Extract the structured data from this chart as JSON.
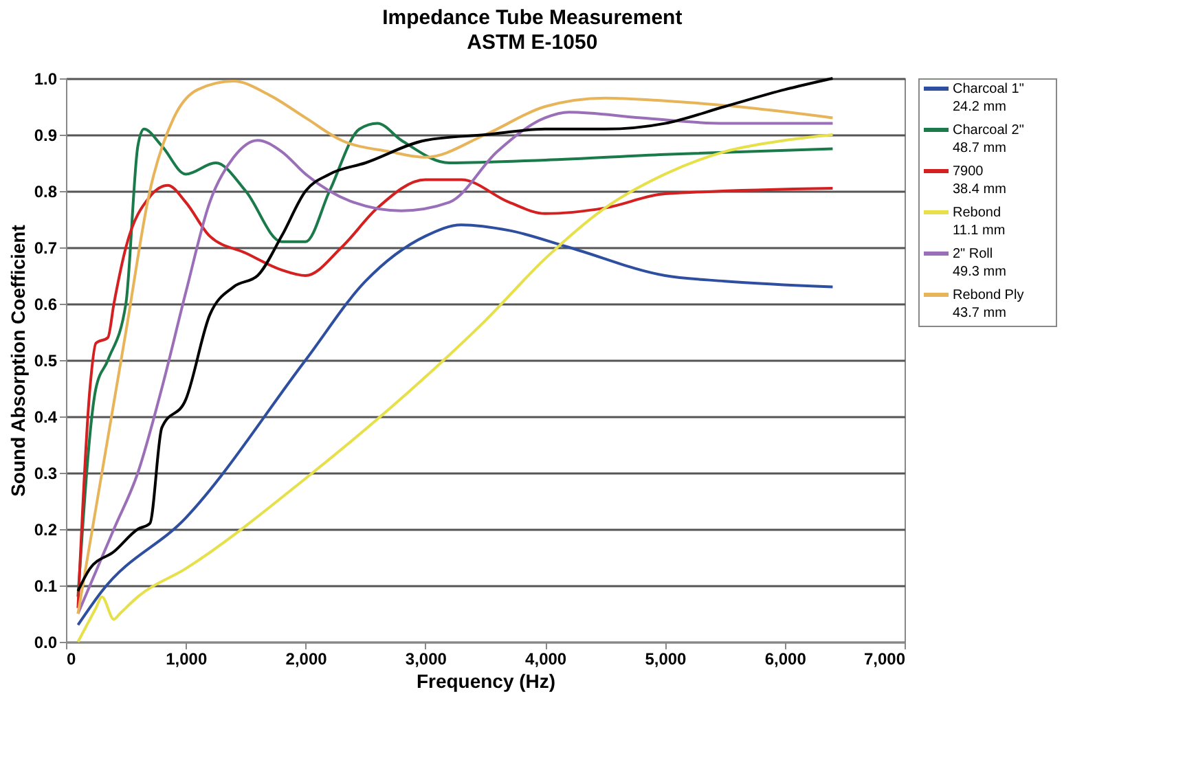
{
  "chart_data": {
    "type": "line",
    "title": "Impedance Tube Measurement",
    "subtitle": "ASTM E-1050",
    "xlabel": "Frequency (Hz)",
    "ylabel": "Sound Absorption Coefficient",
    "xlim": [
      0,
      7000
    ],
    "xticks": [
      {
        "value": 0,
        "label": "0"
      },
      {
        "value": 1000,
        "label": "1,000"
      },
      {
        "value": 2000,
        "label": "2,000"
      },
      {
        "value": 3000,
        "label": "3,000"
      },
      {
        "value": 4000,
        "label": "4,000"
      },
      {
        "value": 5000,
        "label": "5,000"
      },
      {
        "value": 6000,
        "label": "6,000"
      },
      {
        "value": 7000,
        "label": "7,000"
      }
    ],
    "ylim": [
      0,
      1
    ],
    "yticks": [
      {
        "value": 0,
        "label": "0.0"
      },
      {
        "value": 0.1,
        "label": "0.1"
      },
      {
        "value": 0.2,
        "label": "0.2"
      },
      {
        "value": 0.3,
        "label": "0.3"
      },
      {
        "value": 0.4,
        "label": "0.4"
      },
      {
        "value": 0.5,
        "label": "0.5"
      },
      {
        "value": 0.6,
        "label": "0.6"
      },
      {
        "value": 0.7,
        "label": "0.7"
      },
      {
        "value": 0.8,
        "label": "0.8"
      },
      {
        "value": 0.9,
        "label": "0.9"
      },
      {
        "value": 1,
        "label": "1.0"
      }
    ],
    "grid": "y",
    "legend": "right",
    "marker": "none",
    "line_style": "solid",
    "series": [
      {
        "name": "Charcoal 1\"\n24.2 mm",
        "color": "#2e4fa0",
        "x": [
          100,
          300,
          1000,
          2000,
          2500,
          3000,
          3300,
          3700,
          4200,
          5000,
          5500,
          6400
        ],
        "values": [
          0.03,
          0.09,
          0.22,
          0.5,
          0.64,
          0.72,
          0.74,
          0.73,
          0.7,
          0.65,
          0.64,
          0.63
        ]
      },
      {
        "name": "Charcoal 2\"\n48.7 mm",
        "color": "#1a7a4a",
        "x": [
          100,
          250,
          350,
          500,
          600,
          650,
          800,
          1000,
          1250,
          1500,
          1800,
          2000,
          2200,
          2450,
          2600,
          2800,
          3200,
          4000,
          5000,
          6400
        ],
        "values": [
          0.08,
          0.45,
          0.5,
          0.6,
          0.88,
          0.91,
          0.88,
          0.83,
          0.85,
          0.8,
          0.71,
          0.71,
          0.8,
          0.91,
          0.92,
          0.89,
          0.85,
          0.855,
          0.865,
          0.875
        ]
      },
      {
        "name": "7900\n38.4 mm",
        "color": "#d42020",
        "x": [
          100,
          200,
          250,
          350,
          400,
          500,
          700,
          850,
          1000,
          1200,
          1500,
          1800,
          2000,
          2300,
          2600,
          3000,
          3300,
          3700,
          4000,
          4500,
          5000,
          6400
        ],
        "values": [
          0.06,
          0.45,
          0.53,
          0.54,
          0.6,
          0.7,
          0.79,
          0.81,
          0.78,
          0.72,
          0.69,
          0.66,
          0.65,
          0.7,
          0.77,
          0.82,
          0.82,
          0.78,
          0.76,
          0.77,
          0.795,
          0.805
        ]
      },
      {
        "name": "Rebond\n11.1 mm",
        "color": "#e6e04a",
        "x": [
          100,
          250,
          300,
          400,
          450,
          600,
          1000,
          2000,
          3000,
          3500,
          4000,
          4500,
          5000,
          5500,
          6000,
          6400
        ],
        "values": [
          0.0,
          0.06,
          0.08,
          0.04,
          0.05,
          0.08,
          0.13,
          0.29,
          0.47,
          0.57,
          0.68,
          0.77,
          0.83,
          0.87,
          0.89,
          0.9
        ]
      },
      {
        "name": "2\" Roll\n49.3 mm",
        "color": "#9a6fb8",
        "x": [
          100,
          400,
          600,
          800,
          1000,
          1200,
          1400,
          1600,
          1800,
          2000,
          2400,
          2800,
          3200,
          3600,
          4000,
          4200,
          4800,
          5500,
          6400
        ],
        "values": [
          0.05,
          0.2,
          0.3,
          0.45,
          0.62,
          0.78,
          0.86,
          0.89,
          0.87,
          0.83,
          0.78,
          0.765,
          0.78,
          0.87,
          0.93,
          0.94,
          0.93,
          0.92,
          0.92
        ]
      },
      {
        "name": "Rebond Ply\n43.7 mm",
        "color": "#e8b45a",
        "x": [
          100,
          300,
          500,
          700,
          900,
          1100,
          1400,
          1700,
          2000,
          2300,
          2700,
          3000,
          3500,
          4000,
          4500,
          5000,
          5600,
          6400
        ],
        "values": [
          0.05,
          0.3,
          0.55,
          0.8,
          0.93,
          0.98,
          0.995,
          0.97,
          0.93,
          0.89,
          0.87,
          0.86,
          0.9,
          0.95,
          0.965,
          0.96,
          0.95,
          0.93
        ]
      },
      {
        "color": "#000000",
        "x": [
          100,
          200,
          400,
          600,
          700,
          800,
          1000,
          1200,
          1400,
          1600,
          1800,
          2000,
          2200,
          2500,
          3000,
          3500,
          4000,
          4500,
          5000,
          5500,
          6000,
          6400
        ],
        "values": [
          0.09,
          0.13,
          0.16,
          0.2,
          0.21,
          0.38,
          0.43,
          0.58,
          0.63,
          0.65,
          0.72,
          0.8,
          0.83,
          0.85,
          0.89,
          0.9,
          0.91,
          0.91,
          0.92,
          0.95,
          0.98,
          1.0
        ]
      }
    ]
  }
}
